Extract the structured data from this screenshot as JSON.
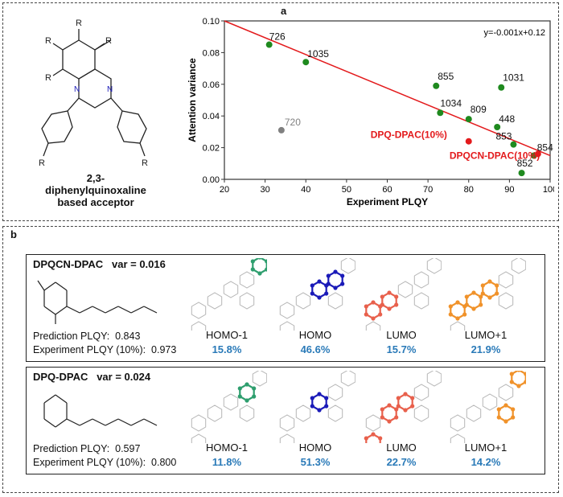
{
  "panel_a": {
    "label": "a",
    "molecule_caption": [
      "2,3-",
      "diphenylquinoxaline",
      "based acceptor"
    ],
    "r_label": "R",
    "n_label": "N"
  },
  "chart_data": {
    "type": "scatter",
    "xlabel": "Experiment PLQY",
    "ylabel": "Attention variance",
    "xlim": [
      20,
      100
    ],
    "ylim": [
      0,
      0.1
    ],
    "xticks": [
      "20",
      "30",
      "40",
      "50",
      "60",
      "70",
      "80",
      "90",
      "100"
    ],
    "yticks": [
      "0.00",
      "0.02",
      "0.04",
      "0.06",
      "0.08",
      "0.10"
    ],
    "fit_label": "y=-0.001x+0.12",
    "fit_line": {
      "x0": 20,
      "y0": 0.1,
      "x1": 100,
      "y1": 0.015
    },
    "colors": {
      "train": "#1f8a1f",
      "outlier": "#808080",
      "new": "#e31a1c",
      "fit": "#e31a1c"
    },
    "points": [
      {
        "label": "726",
        "x": 31,
        "y": 0.085,
        "group": "train"
      },
      {
        "label": "1035",
        "x": 40,
        "y": 0.074,
        "group": "train"
      },
      {
        "label": "855",
        "x": 72,
        "y": 0.059,
        "group": "train"
      },
      {
        "label": "1031",
        "x": 88,
        "y": 0.058,
        "group": "train"
      },
      {
        "label": "1034",
        "x": 73,
        "y": 0.042,
        "group": "train"
      },
      {
        "label": "809",
        "x": 80,
        "y": 0.038,
        "group": "train"
      },
      {
        "label": "448",
        "x": 87,
        "y": 0.033,
        "group": "train"
      },
      {
        "label": "853",
        "x": 91,
        "y": 0.022,
        "group": "train"
      },
      {
        "label": "854",
        "x": 96,
        "y": 0.015,
        "group": "train"
      },
      {
        "label": "852",
        "x": 93,
        "y": 0.004,
        "group": "train"
      },
      {
        "label": "720",
        "x": 34,
        "y": 0.031,
        "group": "outlier"
      },
      {
        "label": "DPQ-DPAC(10%)",
        "x": 80,
        "y": 0.024,
        "group": "new"
      },
      {
        "label": "DPQCN-DPAC(10%)",
        "x": 97,
        "y": 0.016,
        "group": "new"
      }
    ]
  },
  "panel_b": {
    "label": "b",
    "rows": [
      {
        "title": "DPQCN-DPAC   var = 0.016",
        "prediction": "Prediction PLQY:  0.843",
        "experiment": "Experiment PLQY (10%):  0.973",
        "orbitals": [
          {
            "name": "HOMO-1",
            "pct": "15.8%",
            "color": "#2e9e6e"
          },
          {
            "name": "HOMO",
            "pct": "46.6%",
            "color": "#1a1ab8"
          },
          {
            "name": "LUMO",
            "pct": "15.7%",
            "color": "#e8604c"
          },
          {
            "name": "LUMO+1",
            "pct": "21.9%",
            "color": "#f0922a"
          }
        ]
      },
      {
        "title": "DPQ-DPAC   var = 0.024",
        "prediction": "Prediction PLQY:  0.597",
        "experiment": "Experiment PLQY (10%):  0.800",
        "orbitals": [
          {
            "name": "HOMO-1",
            "pct": "11.8%",
            "color": "#2e9e6e"
          },
          {
            "name": "HOMO",
            "pct": "51.3%",
            "color": "#1a1ab8"
          },
          {
            "name": "LUMO",
            "pct": "22.7%",
            "color": "#e8604c"
          },
          {
            "name": "LUMO+1",
            "pct": "14.2%",
            "color": "#f0922a"
          }
        ]
      }
    ]
  }
}
